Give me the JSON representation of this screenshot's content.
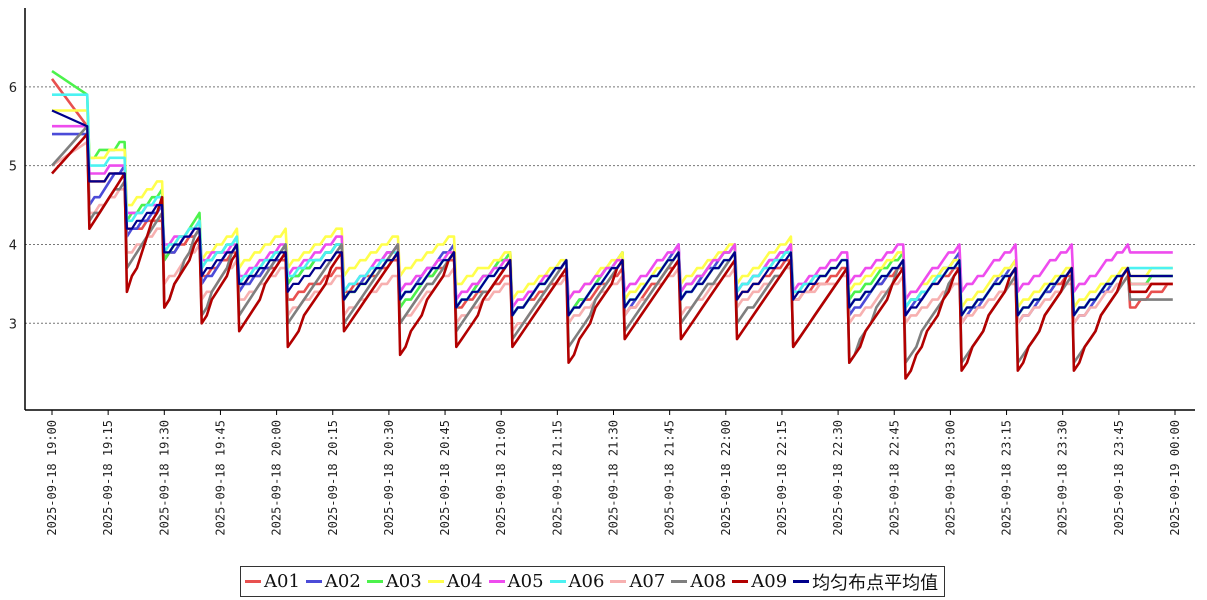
{
  "chart_data": {
    "type": "line",
    "title": "",
    "xlabel": "",
    "ylabel": "",
    "ylim": [
      1.9,
      7.0
    ],
    "yticks": [
      3,
      4,
      5,
      6
    ],
    "grid": "y-dashed",
    "legend_position": "bottom-center",
    "x_start": "2025-09-18 19:00",
    "x_end": "2025-09-19 00:00",
    "x_ticks": [
      "2025-09-18 19:00",
      "2025-09-18 19:15",
      "2025-09-18 19:30",
      "2025-09-18 19:45",
      "2025-09-18 20:00",
      "2025-09-18 20:15",
      "2025-09-18 20:30",
      "2025-09-18 20:45",
      "2025-09-18 21:00",
      "2025-09-18 21:15",
      "2025-09-18 21:30",
      "2025-09-18 21:45",
      "2025-09-18 22:00",
      "2025-09-18 22:15",
      "2025-09-18 22:30",
      "2025-09-18 22:45",
      "2025-09-18 23:00",
      "2025-09-18 23:15",
      "2025-09-18 23:30",
      "2025-09-18 23:45",
      "2025-09-19 00:00"
    ],
    "cycles": {
      "starts": [
        "2025-09-18 19:00",
        "2025-09-18 19:10",
        "2025-09-18 19:20",
        "2025-09-18 19:30",
        "2025-09-18 19:40",
        "2025-09-18 19:50",
        "2025-09-18 20:03",
        "2025-09-18 20:18",
        "2025-09-18 20:33",
        "2025-09-18 20:48",
        "2025-09-18 21:03",
        "2025-09-18 21:18",
        "2025-09-18 21:33",
        "2025-09-18 21:48",
        "2025-09-18 22:03",
        "2025-09-18 22:18",
        "2025-09-18 22:33",
        "2025-09-18 22:48",
        "2025-09-18 23:03",
        "2025-09-18 23:18",
        "2025-09-18 23:33",
        "2025-09-18 23:48",
        "2025-09-19 00:00"
      ]
    },
    "series": [
      {
        "name": "A01",
        "color": "#e8504f",
        "lows": [
          6.1,
          4.8,
          4.2,
          3.8,
          3.6,
          3.5,
          3.3,
          3.4,
          3.3,
          3.2,
          3.1,
          3.1,
          3.1,
          3.3,
          3.3,
          3.3,
          3.2,
          3.2,
          3.1,
          3.1,
          3.1,
          3.2
        ],
        "highs": [
          5.5,
          4.9,
          4.3,
          4.2,
          3.9,
          3.8,
          3.7,
          3.8,
          3.8,
          3.6,
          3.6,
          3.7,
          3.8,
          3.9,
          3.8,
          3.7,
          3.7,
          3.7,
          3.7,
          3.6,
          3.7,
          3.5
        ]
      },
      {
        "name": "A02",
        "color": "#4b4bd8",
        "lows": [
          5.4,
          4.5,
          4.1,
          3.8,
          3.5,
          3.4,
          3.5,
          3.3,
          3.3,
          3.2,
          3.1,
          3.1,
          3.1,
          3.3,
          3.4,
          3.4,
          3.1,
          3.1,
          3.0,
          3.0,
          3.0,
          3.5
        ],
        "highs": [
          5.4,
          5.0,
          4.5,
          4.3,
          4.0,
          3.9,
          4.0,
          4.0,
          4.0,
          3.9,
          3.8,
          3.9,
          4.0,
          4.0,
          4.0,
          3.8,
          3.8,
          3.9,
          3.8,
          3.7,
          3.7,
          3.6
        ]
      },
      {
        "name": "A03",
        "color": "#4cf24c",
        "lows": [
          6.2,
          5.1,
          4.3,
          3.8,
          3.7,
          3.5,
          3.5,
          3.3,
          3.2,
          3.2,
          3.1,
          3.1,
          3.2,
          3.4,
          3.4,
          3.4,
          3.3,
          3.2,
          3.1,
          3.1,
          3.1,
          3.5
        ],
        "highs": [
          5.9,
          5.3,
          4.7,
          4.4,
          4.1,
          4.0,
          4.0,
          3.9,
          3.9,
          3.9,
          3.8,
          3.9,
          3.9,
          4.0,
          3.9,
          3.8,
          3.9,
          3.8,
          3.7,
          3.7,
          3.7,
          3.6
        ]
      },
      {
        "name": "A04",
        "color": "#ffff4c",
        "lows": [
          5.7,
          5.1,
          4.5,
          3.9,
          3.8,
          3.7,
          3.7,
          3.6,
          3.6,
          3.5,
          3.3,
          3.3,
          3.3,
          3.5,
          3.5,
          3.4,
          3.4,
          3.3,
          3.2,
          3.2,
          3.2,
          3.6
        ],
        "highs": [
          5.7,
          5.2,
          4.8,
          4.3,
          4.2,
          4.2,
          4.2,
          4.1,
          4.1,
          3.9,
          3.8,
          3.9,
          3.9,
          4.0,
          4.1,
          3.8,
          3.9,
          3.8,
          3.8,
          3.7,
          3.7,
          3.7
        ]
      },
      {
        "name": "A05",
        "color": "#ee4cee",
        "lows": [
          5.5,
          4.9,
          4.4,
          4.0,
          3.8,
          3.6,
          3.6,
          3.4,
          3.4,
          3.3,
          3.2,
          3.3,
          3.4,
          3.4,
          3.4,
          3.4,
          3.5,
          3.3,
          3.4,
          3.4,
          3.4,
          3.9
        ],
        "highs": [
          5.5,
          5.0,
          4.5,
          4.2,
          4.0,
          4.0,
          4.1,
          4.0,
          3.9,
          3.8,
          3.8,
          3.8,
          4.0,
          4.0,
          4.0,
          3.9,
          4.0,
          4.0,
          4.0,
          4.0,
          4.0,
          3.9
        ]
      },
      {
        "name": "A06",
        "color": "#4cf2f2",
        "lows": [
          5.9,
          5.0,
          4.3,
          3.9,
          3.7,
          3.5,
          3.6,
          3.4,
          3.3,
          3.2,
          3.1,
          3.1,
          3.2,
          3.3,
          3.4,
          3.4,
          3.2,
          3.2,
          3.1,
          3.1,
          3.1,
          3.7
        ],
        "highs": [
          5.9,
          5.1,
          4.6,
          4.3,
          4.1,
          4.0,
          4.0,
          3.9,
          3.9,
          3.8,
          3.8,
          3.8,
          3.9,
          3.9,
          3.9,
          3.8,
          3.8,
          3.8,
          3.7,
          3.7,
          3.7,
          3.7
        ]
      },
      {
        "name": "A07",
        "color": "#f7b0b0",
        "lows": [
          5.0,
          4.4,
          3.9,
          3.5,
          3.3,
          3.3,
          3.1,
          3.1,
          3.0,
          3.0,
          2.9,
          3.0,
          3.1,
          3.1,
          3.2,
          3.3,
          3.0,
          3.0,
          3.0,
          3.0,
          3.0,
          3.5
        ],
        "highs": [
          5.3,
          4.7,
          4.2,
          4.0,
          3.8,
          3.7,
          3.6,
          3.6,
          3.7,
          3.5,
          3.6,
          3.6,
          3.7,
          3.7,
          3.7,
          3.6,
          3.6,
          3.5,
          3.5,
          3.5,
          3.6,
          3.5
        ]
      },
      {
        "name": "A08",
        "color": "#7f7f7f",
        "lows": [
          5.0,
          4.3,
          3.7,
          3.2,
          3.1,
          3.1,
          3.0,
          3.0,
          3.0,
          2.9,
          2.8,
          2.7,
          2.9,
          3.0,
          3.0,
          2.7,
          2.5,
          2.5,
          2.5,
          2.5,
          2.5,
          3.3
        ],
        "highs": [
          5.5,
          4.8,
          4.4,
          4.2,
          4.0,
          4.0,
          4.0,
          4.0,
          3.9,
          3.8,
          3.8,
          3.8,
          3.9,
          3.9,
          3.8,
          3.7,
          3.8,
          3.7,
          3.6,
          3.6,
          3.6,
          3.3
        ]
      },
      {
        "name": "A09",
        "color": "#b20000",
        "lows": [
          4.9,
          4.2,
          3.4,
          3.2,
          3.0,
          2.9,
          2.7,
          2.9,
          2.6,
          2.7,
          2.7,
          2.5,
          2.8,
          2.8,
          2.8,
          2.7,
          2.5,
          2.3,
          2.4,
          2.4,
          2.4,
          3.4
        ],
        "highs": [
          5.4,
          4.9,
          4.6,
          4.1,
          3.9,
          3.9,
          3.9,
          3.9,
          3.9,
          3.8,
          3.7,
          3.8,
          3.8,
          3.8,
          3.8,
          3.7,
          3.7,
          3.7,
          3.7,
          3.7,
          3.7,
          3.5
        ]
      },
      {
        "name": "均匀布点平均值",
        "color": "#00008b",
        "lows": [
          5.7,
          4.8,
          4.2,
          3.9,
          3.6,
          3.5,
          3.4,
          3.3,
          3.3,
          3.2,
          3.1,
          3.1,
          3.2,
          3.3,
          3.3,
          3.3,
          3.2,
          3.1,
          3.1,
          3.1,
          3.1,
          3.6
        ],
        "highs": [
          5.5,
          4.9,
          4.5,
          4.2,
          4.0,
          3.9,
          3.9,
          3.9,
          3.9,
          3.8,
          3.8,
          3.8,
          3.9,
          3.9,
          3.9,
          3.8,
          3.8,
          3.8,
          3.7,
          3.7,
          3.7,
          3.6
        ]
      }
    ]
  }
}
